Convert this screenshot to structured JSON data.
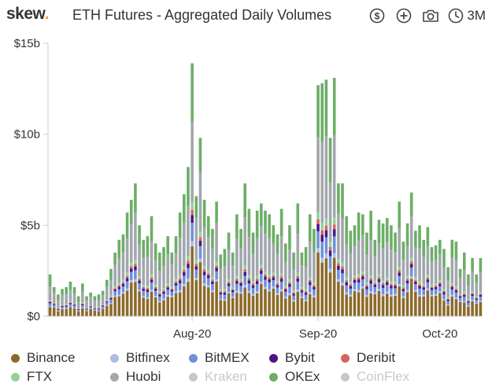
{
  "header": {
    "logo_text": "skew",
    "logo_dot": ".",
    "title": "ETH Futures - Aggregated Daily Volumes",
    "icons": [
      "dollar-icon",
      "plus-circle-icon",
      "camera-icon",
      "clock-icon"
    ],
    "range_label": "3M"
  },
  "colors": {
    "Binance": "#8c6a2a",
    "Bitfinex": "#a9bde6",
    "BitMEX": "#6f8fdc",
    "Bybit": "#4b1687",
    "Deribit": "#d6655f",
    "FTX": "#98d09a",
    "Huobi": "#a2a7ad",
    "Kraken": "#c8c8c8",
    "OKEx": "#6cae67",
    "CoinFlex": "#c8c8c8"
  },
  "legend": [
    {
      "name": "Binance",
      "active": true
    },
    {
      "name": "Bitfinex",
      "active": true
    },
    {
      "name": "BitMEX",
      "active": true
    },
    {
      "name": "Bybit",
      "active": true
    },
    {
      "name": "Deribit",
      "active": true
    },
    {
      "name": "FTX",
      "active": true
    },
    {
      "name": "Huobi",
      "active": true
    },
    {
      "name": "Kraken",
      "active": false
    },
    {
      "name": "OKEx",
      "active": true
    },
    {
      "name": "CoinFlex",
      "active": false
    }
  ],
  "chart_data": {
    "type": "bar",
    "stacked": true,
    "title": "ETH Futures - Aggregated Daily Volumes",
    "xlabel": "",
    "ylabel": "",
    "ylim": [
      0,
      15
    ],
    "y_unit": "billion USD",
    "y_ticks": [
      {
        "value": 0,
        "label": "$0"
      },
      {
        "value": 5,
        "label": "$5b"
      },
      {
        "value": 10,
        "label": "$10b"
      },
      {
        "value": 15,
        "label": "$15b"
      }
    ],
    "x_ticks": [
      {
        "index": 35,
        "label": "Aug-20"
      },
      {
        "index": 66,
        "label": "Sep-20"
      },
      {
        "index": 96,
        "label": "Oct-20"
      }
    ],
    "grid": false,
    "legend_position": "bottom",
    "totals": [
      2.3,
      1.6,
      1.2,
      1.5,
      1.6,
      1.9,
      1.6,
      1.1,
      1.8,
      1.1,
      1.3,
      1.1,
      1.2,
      1.4,
      2.0,
      2.6,
      3.5,
      4.2,
      4.5,
      5.7,
      6.4,
      7.3,
      5.0,
      4.2,
      4.4,
      5.5,
      4.0,
      3.5,
      3.8,
      4.4,
      3.5,
      4.4,
      5.7,
      6.7,
      8.2,
      13.9,
      6.6,
      9.8,
      6.4,
      5.5,
      4.8,
      6.3,
      3.4,
      3.7,
      4.6,
      3.5,
      5.6,
      4.8,
      7.3,
      5.9,
      4.6,
      5.8,
      6.2,
      5.8,
      5.6,
      5.0,
      4.5,
      5.9,
      4.0,
      5.0,
      3.5,
      6.2,
      3.5,
      3.8,
      5.6,
      4.8,
      12.7,
      12.8,
      13.0,
      9.8,
      13.1,
      7.3,
      7.3,
      5.5,
      4.7,
      5.0,
      5.7,
      5.6,
      4.6,
      5.8,
      4.2,
      5.3,
      5.1,
      5.4,
      5.0,
      4.6,
      6.3,
      4.1,
      5.1,
      6.8,
      4.7,
      5.0,
      4.2,
      4.9,
      3.8,
      3.9,
      4.2,
      3.7,
      2.7,
      4.2,
      4.1,
      2.6,
      3.5,
      2.3,
      3.2,
      2.3,
      3.2
    ],
    "share": {
      "Binance": 0.26,
      "Bitfinex": 0.02,
      "BitMEX": 0.07,
      "Bybit": 0.03,
      "Deribit": 0.02,
      "FTX": 0.03,
      "Huobi": 0.34,
      "OKEx": 0.23
    },
    "series_order": [
      "Binance",
      "Bitfinex",
      "BitMEX",
      "Bybit",
      "Deribit",
      "FTX",
      "Huobi",
      "OKEx"
    ]
  }
}
